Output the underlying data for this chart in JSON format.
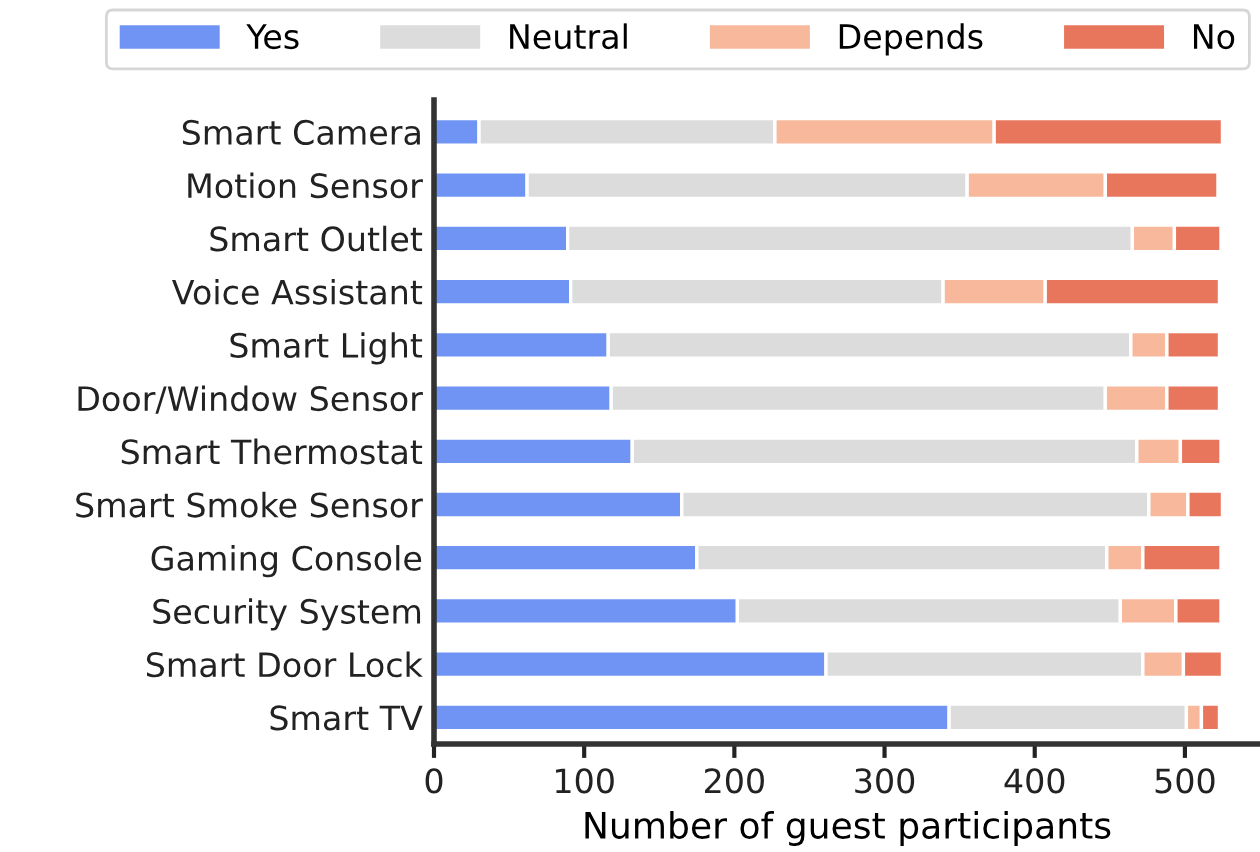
{
  "chart_data": {
    "type": "bar",
    "orientation": "horizontal",
    "stacked": true,
    "xlabel": "Number of guest participants",
    "categories": [
      "Smart Camera",
      "Motion Sensor",
      "Smart Outlet",
      "Voice Assistant",
      "Smart Light",
      "Door/Window Sensor",
      "Smart Thermostat",
      "Smart Smoke Sensor",
      "Gaming Console",
      "Security System",
      "Smart Door Lock",
      "Smart TV"
    ],
    "series": [
      {
        "name": "Yes",
        "color": "#6f94f3",
        "values": [
          30,
          62,
          89,
          91,
          116,
          118,
          132,
          165,
          175,
          202,
          261,
          343
        ]
      },
      {
        "name": "Neutral",
        "color": "#dcdcdc",
        "values": [
          197,
          293,
          376,
          248,
          348,
          329,
          336,
          311,
          273,
          255,
          211,
          158
        ]
      },
      {
        "name": "Depends",
        "color": "#f7b89c",
        "values": [
          146,
          92,
          28,
          68,
          24,
          41,
          29,
          26,
          24,
          37,
          27,
          10
        ]
      },
      {
        "name": "No",
        "color": "#e8765d",
        "values": [
          152,
          75,
          31,
          116,
          35,
          35,
          27,
          23,
          52,
          30,
          26,
          12
        ]
      }
    ],
    "xlim": [
      0,
      550
    ],
    "xticks": [
      0,
      100,
      200,
      300,
      400,
      500
    ],
    "grid": false,
    "legend": "top"
  }
}
